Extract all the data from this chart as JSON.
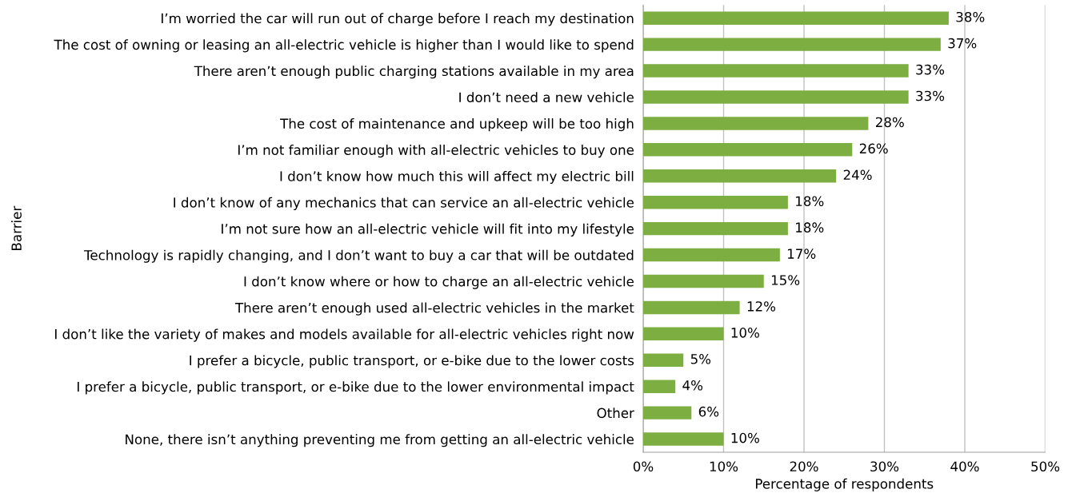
{
  "chart_data": {
    "type": "bar",
    "orientation": "horizontal",
    "xlabel": "Percentage of respondents",
    "ylabel": "Barrier",
    "categories": [
      "I’m worried the car will run out of charge before I reach my destination",
      "The cost of owning or leasing an all-electric vehicle is higher than I would like to spend",
      "There aren’t enough public charging stations available in my area",
      "I don’t need a new vehicle",
      "The cost of maintenance and upkeep will be too high",
      "I’m not familiar enough with all-electric vehicles to buy one",
      "I don’t know how much this will affect my electric bill",
      "I don’t know of any mechanics that can service an all-electric vehicle",
      "I’m not sure how an all-electric vehicle will fit into my lifestyle",
      "Technology is rapidly changing, and I don’t want to buy a car that will be outdated",
      "I don’t know where or how to charge an all-electric vehicle",
      "There aren’t enough used all-electric vehicles in the market",
      "I don’t like the variety of makes and models available for all-electric vehicles right now",
      "I prefer a bicycle, public transport, or e-bike due to the lower costs",
      "I prefer a bicycle, public transport, or e-bike due to the lower environmental impact",
      "Other",
      "None, there isn’t anything preventing me from getting an all-electric vehicle"
    ],
    "values": [
      38,
      37,
      33,
      33,
      28,
      26,
      24,
      18,
      18,
      17,
      15,
      12,
      10,
      5,
      4,
      6,
      10
    ],
    "color": "#7cae42",
    "value_labels": [
      "38%",
      "37%",
      "33%",
      "33%",
      "28%",
      "26%",
      "24%",
      "18%",
      "18%",
      "17%",
      "15%",
      "12%",
      "10%",
      "5%",
      "4%",
      "6%",
      "10%"
    ],
    "xlim": [
      0,
      50
    ],
    "xticks": [
      {
        "value": 0,
        "label": "0%"
      },
      {
        "value": 10,
        "label": "10%"
      },
      {
        "value": 20,
        "label": "20%"
      },
      {
        "value": 30,
        "label": "30%"
      },
      {
        "value": 40,
        "label": "40%"
      },
      {
        "value": 50,
        "label": "50%"
      }
    ],
    "grid": "x"
  }
}
